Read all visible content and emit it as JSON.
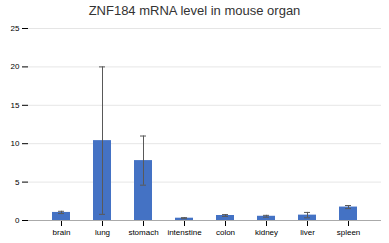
{
  "chart_data": {
    "type": "bar",
    "title": "ZNF184 mRNA level in mouse organ",
    "categories": [
      "brain",
      "lung",
      "stomach",
      "intenstine",
      "colon",
      "kidney",
      "liver",
      "spleen"
    ],
    "values": [
      1.05,
      10.4,
      7.8,
      0.3,
      0.65,
      0.55,
      0.7,
      1.75
    ],
    "errors": [
      0.15,
      9.6,
      3.2,
      0.07,
      0.12,
      0.12,
      0.35,
      0.2
    ],
    "color": "#4472c4",
    "ylim": [
      0,
      25
    ],
    "yticks": [
      0,
      5,
      10,
      15,
      20,
      25
    ],
    "grid": true
  }
}
